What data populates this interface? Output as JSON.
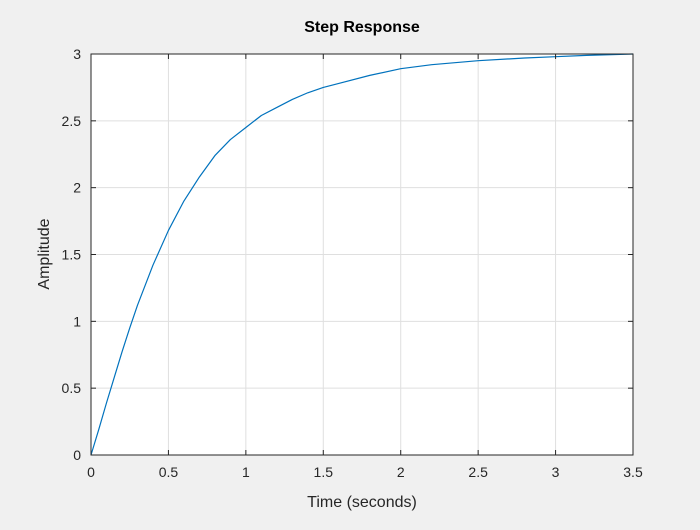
{
  "chart_data": {
    "type": "line",
    "title": "Step Response",
    "xlabel": "Time (seconds)",
    "ylabel": "Amplitude",
    "xlim": [
      0,
      3.5
    ],
    "ylim": [
      0,
      3
    ],
    "x_ticks": [
      0,
      0.5,
      1,
      1.5,
      2,
      2.5,
      3,
      3.5
    ],
    "x_tick_labels": [
      "0",
      "0.5",
      "1",
      "1.5",
      "2",
      "2.5",
      "3",
      "3.5"
    ],
    "y_ticks": [
      0,
      0.5,
      1,
      1.5,
      2,
      2.5,
      3
    ],
    "y_tick_labels": [
      "0",
      "0.5",
      "1",
      "1.5",
      "2",
      "2.5",
      "3"
    ],
    "grid": true,
    "legend": "none",
    "series": [
      {
        "color": "#0072bd",
        "x": [
          0,
          0.05,
          0.1,
          0.15,
          0.2,
          0.25,
          0.3,
          0.4,
          0.5,
          0.6,
          0.7,
          0.8,
          0.9,
          1.0,
          1.1,
          1.2,
          1.3,
          1.4,
          1.5,
          1.6,
          1.8,
          2.0,
          2.2,
          2.5,
          2.8,
          3.0,
          3.2,
          3.5
        ],
        "values": [
          0,
          0.19,
          0.39,
          0.58,
          0.77,
          0.95,
          1.12,
          1.42,
          1.68,
          1.9,
          2.08,
          2.24,
          2.36,
          2.45,
          2.54,
          2.6,
          2.66,
          2.71,
          2.75,
          2.78,
          2.84,
          2.89,
          2.92,
          2.95,
          2.97,
          2.98,
          2.99,
          3.0
        ]
      }
    ]
  }
}
